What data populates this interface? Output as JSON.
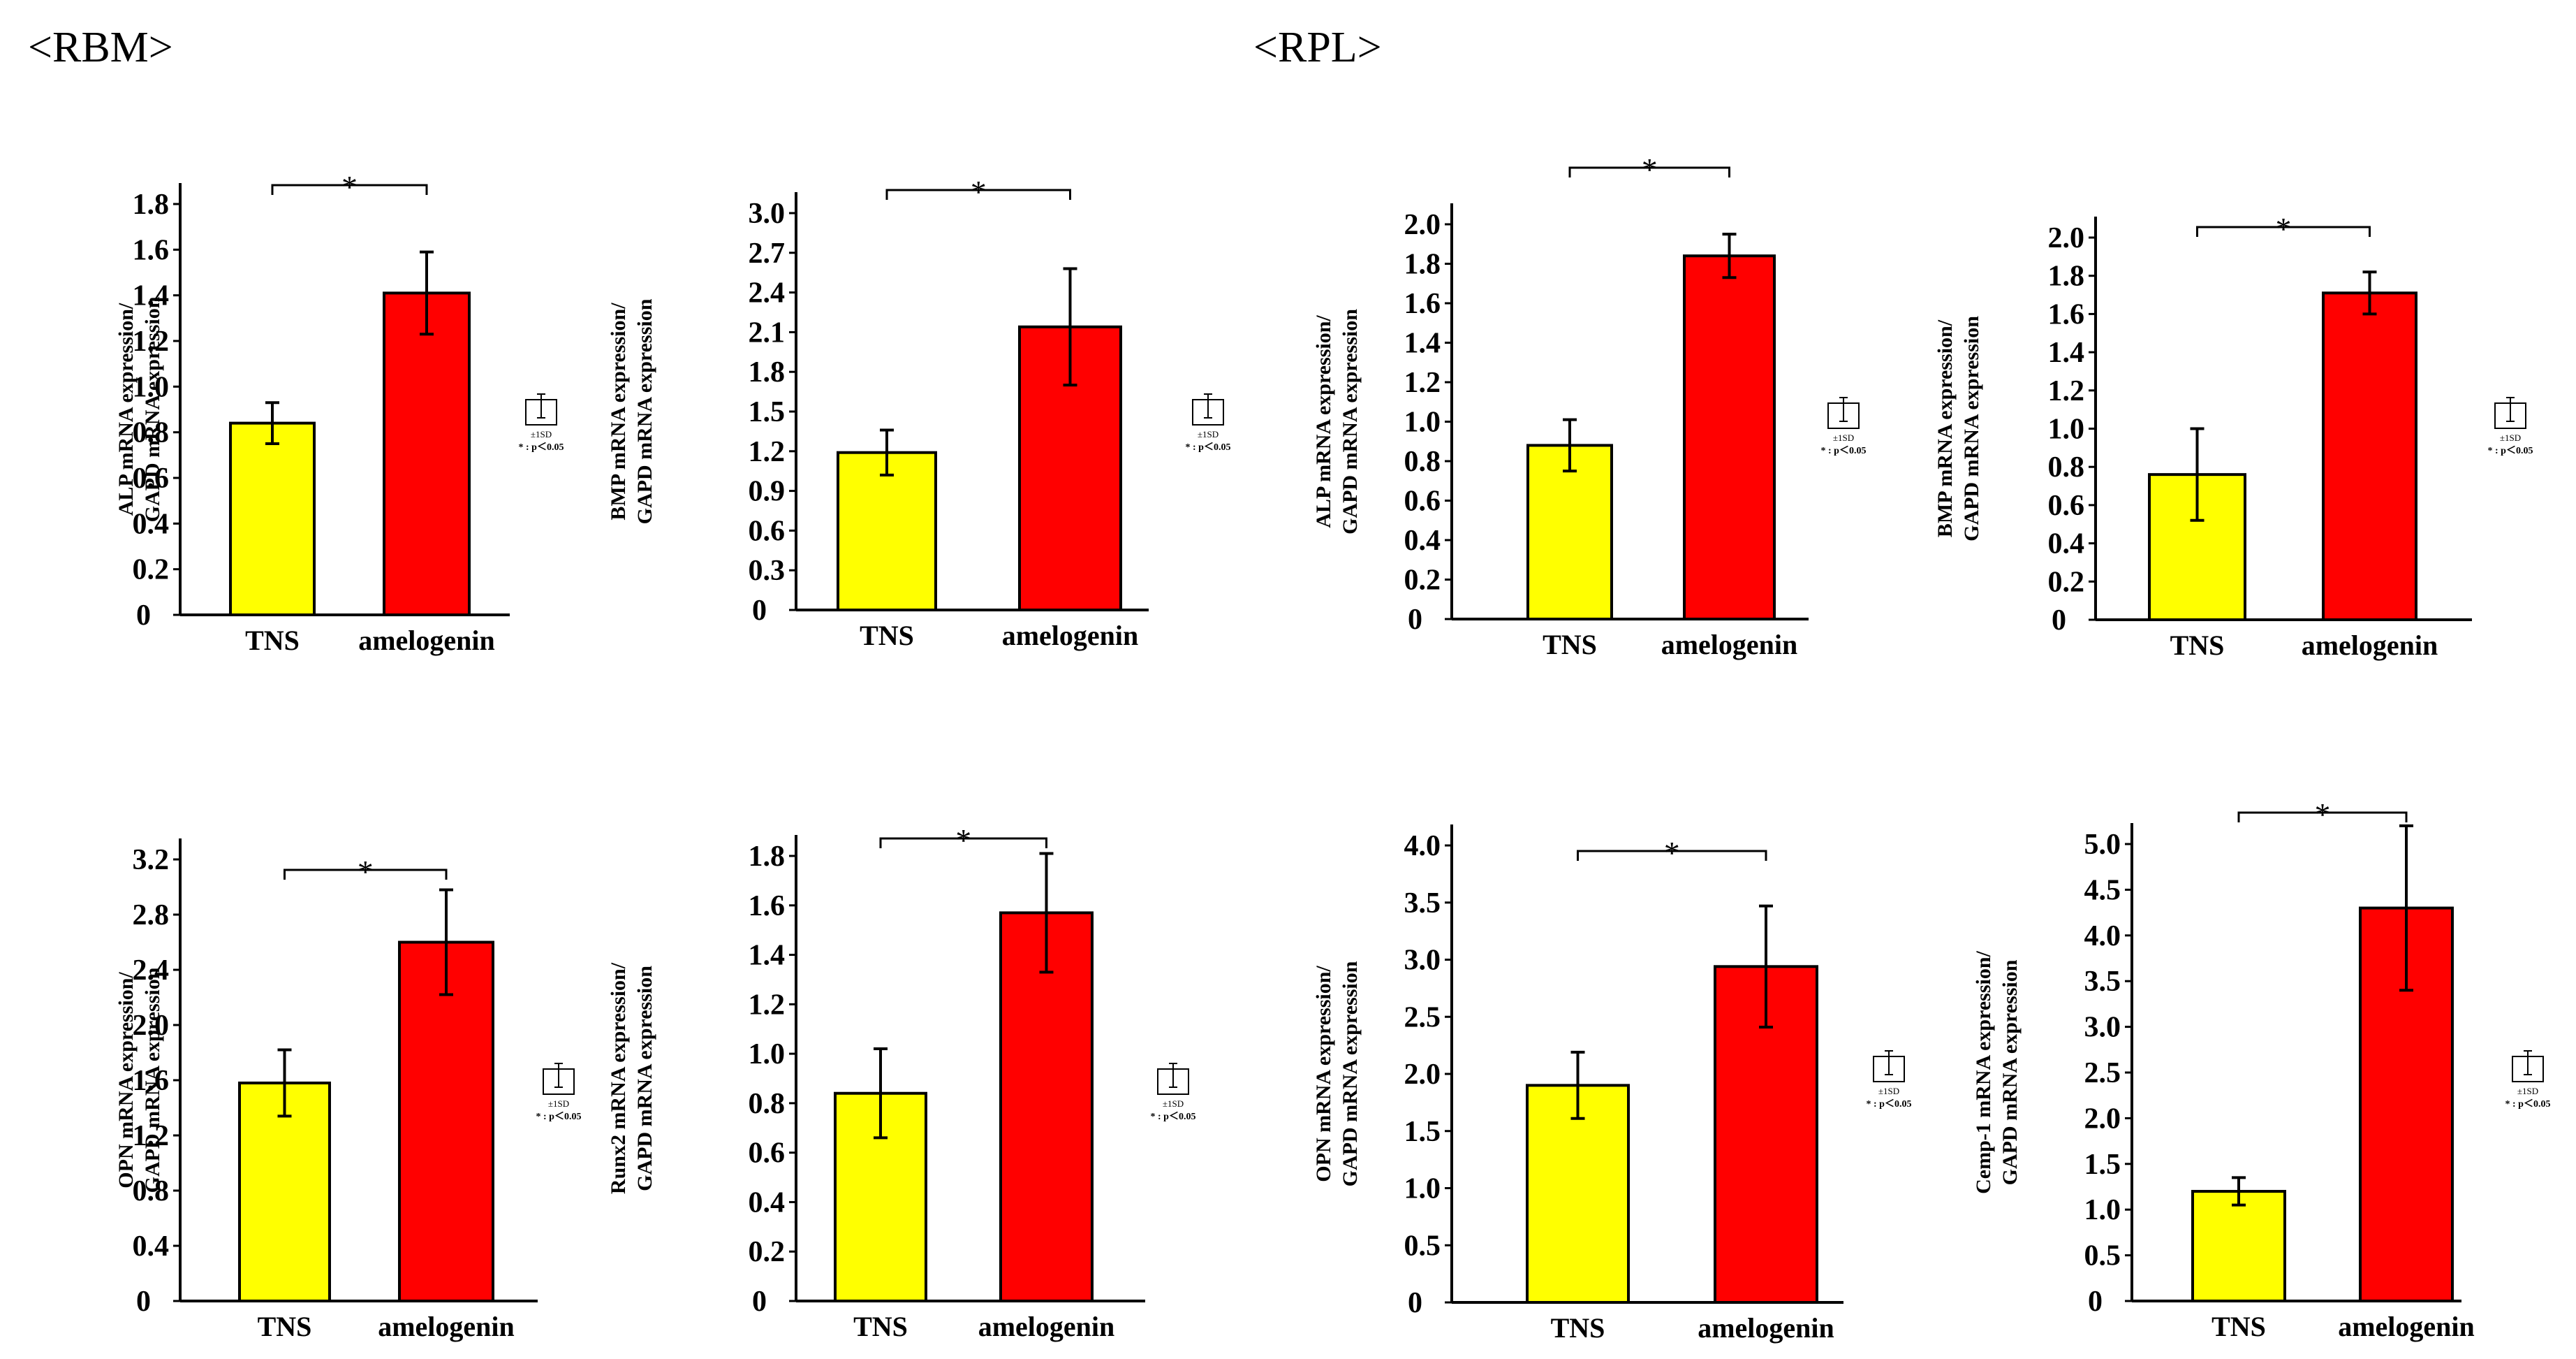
{
  "sections": [
    {
      "label": "<RBM>"
    },
    {
      "label": "<RPL>"
    }
  ],
  "legend": {
    "sd_text": "±1SD",
    "p_text": "* : p＜0.05"
  },
  "colors": {
    "tns": "#ffff00",
    "amelogenin": "#ff0000",
    "axis": "#000000"
  },
  "chart_data": [
    {
      "type": "bar",
      "section": "<RBM>",
      "categories": [
        "TNS",
        "amelogenin"
      ],
      "values": [
        0.84,
        1.41
      ],
      "errors": [
        0.09,
        0.18
      ],
      "ylabel": [
        "ALP mRNA expression/",
        "GAPD mRNA expression"
      ],
      "yticks": [
        "0",
        "0.2",
        "0.4",
        "0.6",
        "0.8",
        "1.0",
        "1.2",
        "1.4",
        "1.6",
        "1.8"
      ],
      "ylim": [
        0,
        1.8
      ],
      "significance": "*"
    },
    {
      "type": "bar",
      "section": "<RBM>",
      "categories": [
        "TNS",
        "amelogenin"
      ],
      "values": [
        1.19,
        2.14
      ],
      "errors": [
        0.17,
        0.44
      ],
      "ylabel": [
        "BMP mRNA expression/",
        "GAPD mRNA expression"
      ],
      "yticks": [
        "0",
        "0.3",
        "0.6",
        "0.9",
        "1.2",
        "1.5",
        "1.8",
        "2.1",
        "2.4",
        "2.7",
        "3.0"
      ],
      "ylim": [
        0,
        3.0
      ],
      "significance": "*"
    },
    {
      "type": "bar",
      "section": "<RPL>",
      "categories": [
        "TNS",
        "amelogenin"
      ],
      "values": [
        0.88,
        1.84
      ],
      "errors": [
        0.13,
        0.11
      ],
      "ylabel": [
        "ALP mRNA expression/",
        "GAPD mRNA expression"
      ],
      "yticks": [
        "0",
        "0.2",
        "0.4",
        "0.6",
        "0.8",
        "1.0",
        "1.2",
        "1.4",
        "1.6",
        "1.8",
        "2.0"
      ],
      "ylim": [
        0,
        2.0
      ],
      "significance": "*"
    },
    {
      "type": "bar",
      "section": "<RPL>",
      "categories": [
        "TNS",
        "amelogenin"
      ],
      "values": [
        0.76,
        1.71
      ],
      "errors": [
        0.24,
        0.11
      ],
      "ylabel": [
        "BMP mRNA expression/",
        "GAPD mRNA expression"
      ],
      "yticks": [
        "0",
        "0.2",
        "0.4",
        "0.6",
        "0.8",
        "1.0",
        "1.2",
        "1.4",
        "1.6",
        "1.8",
        "2.0"
      ],
      "ylim": [
        0,
        2.0
      ],
      "significance": "*"
    },
    {
      "type": "bar",
      "section": "<RBM>",
      "categories": [
        "TNS",
        "amelogenin"
      ],
      "values": [
        1.58,
        2.6
      ],
      "errors": [
        0.24,
        0.38
      ],
      "ylabel": [
        "OPN mRNA expression/",
        "GAPD mRNA expression"
      ],
      "yticks": [
        "0",
        "0.4",
        "0.8",
        "1.2",
        "1.6",
        "2.0",
        "2.4",
        "2.8",
        "3.2"
      ],
      "ylim": [
        0,
        3.2
      ],
      "significance": "*"
    },
    {
      "type": "bar",
      "section": "<RBM>",
      "categories": [
        "TNS",
        "amelogenin"
      ],
      "values": [
        0.84,
        1.57
      ],
      "errors": [
        0.18,
        0.24
      ],
      "ylabel": [
        "Runx2 mRNA expression/",
        "GAPD mRNA expression"
      ],
      "yticks": [
        "0",
        "0.2",
        "0.4",
        "0.6",
        "0.8",
        "1.0",
        "1.2",
        "1.4",
        "1.6",
        "1.8"
      ],
      "ylim": [
        0,
        1.8
      ],
      "significance": "*"
    },
    {
      "type": "bar",
      "section": "<RPL>",
      "categories": [
        "TNS",
        "amelogenin"
      ],
      "values": [
        1.9,
        2.94
      ],
      "errors": [
        0.29,
        0.53
      ],
      "ylabel": [
        "OPN mRNA expression/",
        "GAPD mRNA expression"
      ],
      "yticks": [
        "0",
        "0.5",
        "1.0",
        "1.5",
        "2.0",
        "2.5",
        "3.0",
        "3.5",
        "4.0"
      ],
      "ylim": [
        0,
        4.0
      ],
      "significance": "*"
    },
    {
      "type": "bar",
      "section": "<RPL>",
      "categories": [
        "TNS",
        "amelogenin"
      ],
      "values": [
        1.2,
        4.3
      ],
      "errors": [
        0.15,
        0.9
      ],
      "ylabel": [
        "Cemp-1 mRNA expression/",
        "GAPD mRNA expression"
      ],
      "yticks": [
        "0",
        "0.5",
        "1.0",
        "1.5",
        "2.0",
        "2.5",
        "3.0",
        "3.5",
        "4.0",
        "4.5",
        "5.0"
      ],
      "ylim": [
        0,
        5.0
      ],
      "significance": "*"
    }
  ]
}
